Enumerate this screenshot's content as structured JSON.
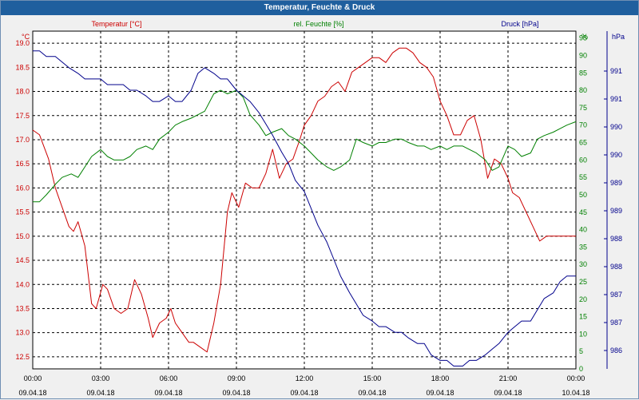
{
  "window": {
    "title": "Temperatur, Feuchte & Druck"
  },
  "chart_data": {
    "type": "line",
    "title": "Temperatur, Feuchte & Druck",
    "axes": {
      "temp": {
        "label": "Temperatur [°C]",
        "unit": "°C",
        "ylim": [
          12.25,
          19.25
        ],
        "ticks": [
          "12.5",
          "13.0",
          "13.5",
          "14.0",
          "14.5",
          "15.0",
          "15.5",
          "16.0",
          "16.5",
          "17.0",
          "17.5",
          "18.0",
          "18.5",
          "19.0"
        ],
        "color": "#cc0000"
      },
      "hum": {
        "label": "rel. Feuchte [%]",
        "unit": "%",
        "ylim": [
          0,
          97
        ],
        "ticks": [
          "0",
          "5",
          "10",
          "15",
          "20",
          "25",
          "30",
          "35",
          "40",
          "45",
          "50",
          "55",
          "60",
          "65",
          "70",
          "75",
          "80",
          "85",
          "90",
          "95"
        ],
        "color": "#008000"
      },
      "press": {
        "label": "Druck [hPa]",
        "unit": "hPa",
        "ticks": [
          "986",
          "987",
          "987",
          "988",
          "988",
          "989",
          "989",
          "990",
          "990",
          "991",
          "991"
        ],
        "color": "#00008b"
      }
    },
    "x_ticks": [
      {
        "time": "00:00",
        "date": "09.04.18"
      },
      {
        "time": "03:00",
        "date": "09.04.18"
      },
      {
        "time": "06:00",
        "date": "09.04.18"
      },
      {
        "time": "09:00",
        "date": "09.04.18"
      },
      {
        "time": "12:00",
        "date": "09.04.18"
      },
      {
        "time": "15:00",
        "date": "09.04.18"
      },
      {
        "time": "18:00",
        "date": "09.04.18"
      },
      {
        "time": "21:00",
        "date": "09.04.18"
      },
      {
        "time": "00:00",
        "date": "10.04.18"
      }
    ],
    "x_unit": "hours since 09.04.18 00:00",
    "grid": true,
    "series": [
      {
        "name": "Temperatur [°C]",
        "axis": "temp",
        "color": "#cc0000",
        "x": [
          0,
          0.3,
          0.7,
          1.0,
          1.3,
          1.6,
          1.8,
          2.0,
          2.3,
          2.6,
          2.8,
          3.1,
          3.3,
          3.6,
          3.9,
          4.2,
          4.5,
          4.8,
          5.1,
          5.3,
          5.6,
          5.9,
          6.1,
          6.3,
          6.6,
          6.9,
          7.1,
          7.4,
          7.7,
          8.0,
          8.3,
          8.6,
          8.8,
          9.1,
          9.4,
          9.7,
          10.0,
          10.3,
          10.6,
          10.9,
          11.2,
          11.5,
          11.8,
          12.0,
          12.3,
          12.6,
          12.9,
          13.2,
          13.5,
          13.8,
          14.1,
          14.4,
          14.7,
          15.0,
          15.3,
          15.6,
          15.9,
          16.2,
          16.5,
          16.8,
          17.1,
          17.4,
          17.7,
          18.0,
          18.3,
          18.6,
          18.9,
          19.2,
          19.5,
          19.8,
          20.1,
          20.4,
          20.7,
          21.0,
          21.2,
          21.5,
          21.8,
          22.1,
          22.4,
          22.7,
          23.0,
          23.3,
          23.6,
          24.0
        ],
        "values": [
          17.2,
          17.1,
          16.6,
          16.0,
          15.6,
          15.2,
          15.1,
          15.3,
          14.8,
          13.6,
          13.5,
          14.0,
          13.9,
          13.5,
          13.4,
          13.5,
          14.1,
          13.8,
          13.3,
          12.9,
          13.2,
          13.3,
          13.5,
          13.2,
          13.0,
          12.8,
          12.8,
          12.7,
          12.6,
          13.2,
          14.0,
          15.5,
          15.9,
          15.6,
          16.1,
          16.0,
          16.0,
          16.3,
          16.8,
          16.2,
          16.5,
          16.6,
          17.0,
          17.3,
          17.5,
          17.8,
          17.9,
          18.1,
          18.2,
          18.0,
          18.4,
          18.5,
          18.6,
          18.7,
          18.7,
          18.6,
          18.8,
          18.9,
          18.9,
          18.8,
          18.6,
          18.5,
          18.3,
          17.8,
          17.5,
          17.1,
          17.1,
          17.4,
          17.5,
          17.0,
          16.2,
          16.6,
          16.5,
          16.2,
          15.9,
          15.8,
          15.5,
          15.2,
          14.9,
          15.0,
          15.0,
          15.0,
          15.0,
          15.0
        ],
        "stroke_width": 1
      },
      {
        "name": "rel. Feuchte [%]",
        "axis": "hum",
        "color": "#008000",
        "x": [
          0,
          0.3,
          0.6,
          1.0,
          1.3,
          1.7,
          2.0,
          2.3,
          2.6,
          3.0,
          3.3,
          3.6,
          4.0,
          4.3,
          4.6,
          5.0,
          5.3,
          5.6,
          6.0,
          6.3,
          6.6,
          7.0,
          7.3,
          7.6,
          8.0,
          8.3,
          8.6,
          9.0,
          9.3,
          9.6,
          10.0,
          10.3,
          10.6,
          11.0,
          11.3,
          11.6,
          12.0,
          12.3,
          12.6,
          13.0,
          13.3,
          13.6,
          14.0,
          14.3,
          14.6,
          15.0,
          15.3,
          15.6,
          16.0,
          16.3,
          16.6,
          17.0,
          17.3,
          17.6,
          18.0,
          18.3,
          18.6,
          19.0,
          19.3,
          19.6,
          20.0,
          20.3,
          20.6,
          21.0,
          21.3,
          21.6,
          22.0,
          22.3,
          22.6,
          23.0,
          23.3,
          23.6,
          24.0
        ],
        "values": [
          48,
          48,
          50,
          53,
          55,
          56,
          55,
          58,
          61,
          63,
          61,
          60,
          60,
          61,
          63,
          64,
          63,
          66,
          68,
          70,
          71,
          72,
          73,
          74,
          79,
          80,
          79,
          80,
          78,
          73,
          70,
          67,
          68,
          69,
          67,
          66,
          64,
          62,
          60,
          58,
          57,
          58,
          60,
          66,
          65,
          64,
          65,
          65,
          66,
          66,
          65,
          64,
          64,
          63,
          64,
          63,
          64,
          64,
          63,
          62,
          60,
          57,
          58,
          64,
          63,
          61,
          62,
          66,
          67,
          68,
          69,
          70,
          71
        ],
        "stroke_width": 1
      },
      {
        "name": "Druck [hPa]",
        "axis": "press",
        "color": "#00008b",
        "x": [
          0,
          0.3,
          0.6,
          1.0,
          1.3,
          1.6,
          2.0,
          2.3,
          2.6,
          3.0,
          3.3,
          3.6,
          4.0,
          4.3,
          4.6,
          5.0,
          5.3,
          5.6,
          6.0,
          6.3,
          6.6,
          7.0,
          7.3,
          7.6,
          8.0,
          8.3,
          8.6,
          9.0,
          9.3,
          9.6,
          10.0,
          10.3,
          10.6,
          11.0,
          11.3,
          11.6,
          12.0,
          12.3,
          12.6,
          13.0,
          13.3,
          13.6,
          14.0,
          14.3,
          14.6,
          15.0,
          15.3,
          15.6,
          16.0,
          16.3,
          16.6,
          17.0,
          17.3,
          17.6,
          18.0,
          18.3,
          18.6,
          19.0,
          19.3,
          19.6,
          20.0,
          20.3,
          20.6,
          21.0,
          21.3,
          21.6,
          22.0,
          22.3,
          22.6,
          23.0,
          23.3,
          23.6,
          24.0
        ],
        "values": [
          991.4,
          991.4,
          991.3,
          991.3,
          991.2,
          991.1,
          991.0,
          990.9,
          990.9,
          990.9,
          990.8,
          990.8,
          990.8,
          990.7,
          990.7,
          990.6,
          990.5,
          990.5,
          990.6,
          990.5,
          990.5,
          990.7,
          991.0,
          991.1,
          991.0,
          990.9,
          990.9,
          990.7,
          990.6,
          990.5,
          990.3,
          990.1,
          989.9,
          989.6,
          989.4,
          989.1,
          988.9,
          988.6,
          988.3,
          988.0,
          987.7,
          987.4,
          987.1,
          986.9,
          986.7,
          986.6,
          986.5,
          986.5,
          986.4,
          986.4,
          986.3,
          986.2,
          986.2,
          986.0,
          985.9,
          985.9,
          985.8,
          985.8,
          985.9,
          985.9,
          986.0,
          986.1,
          986.2,
          986.4,
          986.5,
          986.6,
          986.6,
          986.8,
          987.0,
          987.1,
          987.3,
          987.4,
          987.4
        ],
        "ylim": [
          985.75,
          991.75
        ],
        "stroke_width": 1
      }
    ]
  }
}
